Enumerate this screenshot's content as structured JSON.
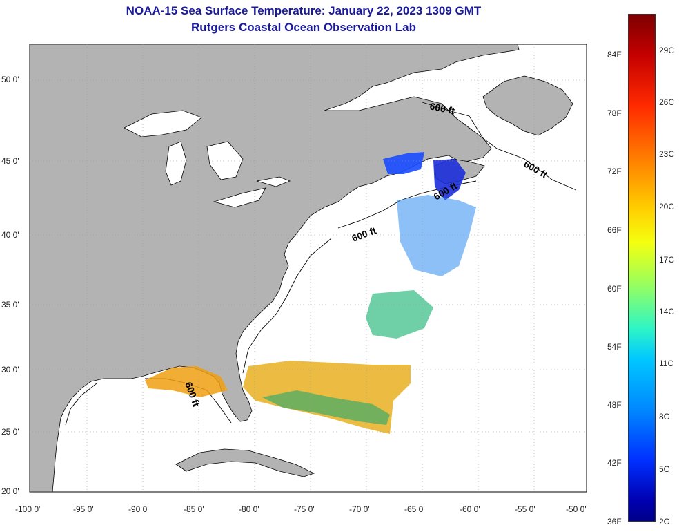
{
  "title": {
    "line1": "NOAA-15 Sea Surface Temperature:  January 22, 2023 1309 GMT",
    "line2": "Rutgers Coastal Ocean Observation Lab"
  },
  "map": {
    "lat_labels": [
      "50 0'",
      "45 0'",
      "40 0'",
      "35 0'",
      "30 0'",
      "25 0'",
      "20 0'"
    ],
    "lon_labels": [
      "-100 0'",
      "-95 0'",
      "-90 0'",
      "-85 0'",
      "-80 0'",
      "-75 0'",
      "-70 0'",
      "-65 0'",
      "-60 0'",
      "-55 0'",
      "-50 0'"
    ],
    "isobath_label": "600 ft",
    "colors": {
      "land": "#b3b3b3",
      "ocean": "#ffffff",
      "title": "#1a1a9c"
    }
  },
  "colorbar": {
    "fahrenheit": [
      "84F",
      "78F",
      "72F",
      "66F",
      "60F",
      "54F",
      "48F",
      "42F",
      "36F"
    ],
    "celsius": [
      "29C",
      "26C",
      "23C",
      "20C",
      "17C",
      "14C",
      "11C",
      "8C",
      "5C",
      "2C"
    ]
  }
}
